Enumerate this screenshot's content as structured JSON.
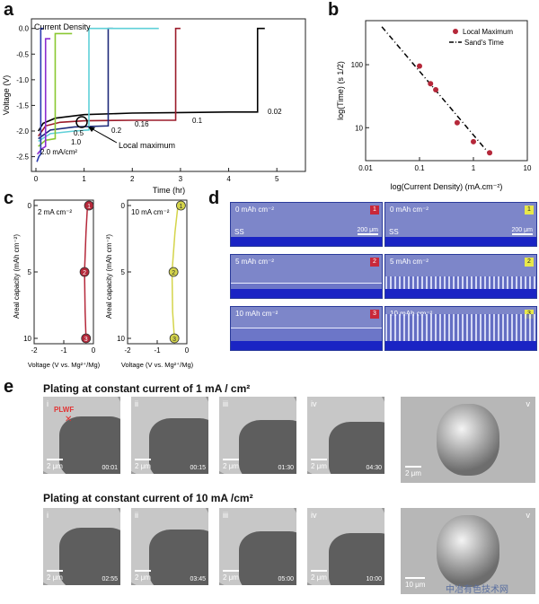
{
  "panels": {
    "a": "a",
    "b": "b",
    "c": "c",
    "d": "d",
    "e": "e"
  },
  "panel_a": {
    "legend_title": "Current Density",
    "xlabel": "Time (hr)",
    "ylabel": "Voltage (V)",
    "annotation": "Local maximum",
    "curve_labels": [
      "0.02",
      "0.1",
      "0.16",
      "0.2",
      "0.5",
      "1.0",
      "2.0 mA/cm²"
    ]
  },
  "panel_b": {
    "xlabel": "log(Current Density) (mA.cm⁻²)",
    "ylabel": "log(Time) (s 1/2)",
    "legend": [
      "Local Maximum",
      "Sand's Time"
    ]
  },
  "panel_c": {
    "left_label": "2 mA cm⁻²",
    "right_label": "10 mA cm⁻²",
    "ylabel": "Areal capacity (mAh cm⁻²)",
    "xlabel": "Voltage (V vs. Mg²⁺/Mg)",
    "markers": [
      "1",
      "2",
      "3"
    ]
  },
  "panel_d": {
    "tiles": [
      {
        "label": "0 mAh cm⁻²",
        "num": "1",
        "ss": "SS",
        "scale": "200 μm"
      },
      {
        "label": "0 mAh cm⁻²",
        "num": "1",
        "ss": "SS",
        "scale": "200 μm"
      },
      {
        "label": "5 mAh cm⁻²",
        "num": "2"
      },
      {
        "label": "5 mAh cm⁻²",
        "num": "2"
      },
      {
        "label": "10 mAh cm⁻²",
        "num": "3"
      },
      {
        "label": "10 mAh cm⁻²",
        "num": "3"
      }
    ]
  },
  "panel_e": {
    "row1_title": "Plating at constant current of 1 mA / cm²",
    "row2_title": "Plating at constant current of 10 mA /cm²",
    "plwf": "PLWF",
    "row1": [
      {
        "roman": "i",
        "scale": "2 μm",
        "time": "00:01"
      },
      {
        "roman": "ii",
        "scale": "2 μm",
        "time": "00:15"
      },
      {
        "roman": "iii",
        "scale": "2 μm",
        "time": "01:30"
      },
      {
        "roman": "iv",
        "scale": "2 μm",
        "time": "04:30"
      },
      {
        "roman": "v",
        "scale": "2 μm"
      }
    ],
    "row2": [
      {
        "roman": "i",
        "scale": "2 μm",
        "time": "02:55"
      },
      {
        "roman": "ii",
        "scale": "2 μm",
        "time": "03:45"
      },
      {
        "roman": "iii",
        "scale": "2 μm",
        "time": "05:00"
      },
      {
        "roman": "iv",
        "scale": "2 μm",
        "time": "10:00"
      },
      {
        "roman": "v",
        "scale": "10 μm"
      }
    ]
  },
  "watermark": "中冶有色技术网",
  "chart_data": [
    {
      "type": "line",
      "title": "",
      "xlabel": "Time (hr)",
      "ylabel": "Voltage (V)",
      "xlim": [
        0,
        5.5
      ],
      "ylim": [
        -2.7,
        0.1
      ],
      "xticks": [
        0,
        1,
        2,
        3,
        4,
        5
      ],
      "yticks": [
        0.0,
        -0.5,
        -1.0,
        -1.5,
        -2.0,
        -2.5
      ],
      "series": [
        {
          "name": "0.02",
          "color": "#000000",
          "x": [
            0.05,
            0.15,
            0.4,
            1.0,
            2.0,
            3.0,
            4.0,
            4.6,
            4.6,
            4.75
          ],
          "y": [
            -2.0,
            -1.85,
            -1.75,
            -1.68,
            -1.65,
            -1.64,
            -1.63,
            -1.63,
            0.0,
            0.0
          ]
        },
        {
          "name": "0.1",
          "color": "#9b1b2a",
          "x": [
            0.05,
            0.2,
            0.5,
            1.0,
            2.0,
            2.9,
            2.9,
            3.0
          ],
          "y": [
            -2.1,
            -1.9,
            -1.83,
            -1.8,
            -1.79,
            -1.79,
            0.0,
            0.0
          ]
        },
        {
          "name": "0.16",
          "color": "#1e2a7a",
          "x": [
            0.05,
            0.3,
            0.8,
            1.5,
            1.5,
            1.6
          ],
          "y": [
            -2.15,
            -1.98,
            -1.92,
            -1.9,
            0.0,
            0.0
          ]
        },
        {
          "name": "0.2",
          "color": "#5fd0d8",
          "x": [
            0.05,
            0.3,
            0.8,
            1.1,
            1.1,
            2.55
          ],
          "y": [
            -2.2,
            -2.05,
            -2.0,
            -1.98,
            0.0,
            0.0
          ]
        },
        {
          "name": "0.5",
          "color": "#8ac832",
          "x": [
            0.05,
            0.2,
            0.4,
            0.4,
            0.75
          ],
          "y": [
            -2.3,
            -2.18,
            -2.15,
            -0.1,
            -0.1
          ]
        },
        {
          "name": "1.0",
          "color": "#8a2bd0",
          "x": [
            0.03,
            0.12,
            0.2,
            0.2,
            0.3
          ],
          "y": [
            -2.45,
            -2.35,
            -2.3,
            -0.2,
            -0.2
          ]
        },
        {
          "name": "2.0 mA/cm²",
          "color": "#2b3bb0",
          "x": [
            0.02,
            0.06,
            0.1,
            0.1,
            0.15
          ],
          "y": [
            -2.6,
            -2.5,
            -2.45,
            0.0,
            0.0
          ]
        }
      ],
      "annotation": "Local maximum"
    },
    {
      "type": "scatter",
      "title": "",
      "xlabel": "log(Current Density) (mA.cm⁻²)",
      "ylabel": "log(Time) (s 1/2)",
      "x_scale": "log",
      "y_scale": "log",
      "xlim": [
        0.01,
        10
      ],
      "ylim": [
        3,
        500
      ],
      "xticks": [
        0.01,
        0.1,
        1,
        10
      ],
      "yticks": [
        10,
        100
      ],
      "series": [
        {
          "name": "Local Maximum",
          "color": "#b5283a",
          "x": [
            0.1,
            0.16,
            0.2,
            0.5,
            1.0,
            2.0
          ],
          "y": [
            95,
            50,
            40,
            12,
            6,
            4
          ]
        },
        {
          "name": "Sand's Time",
          "color": "#000000",
          "style": "dash-dot",
          "x": [
            0.02,
            2.0
          ],
          "y": [
            400,
            3.8
          ]
        }
      ]
    },
    {
      "type": "line",
      "title": "",
      "xlabel": "Voltage (V vs. Mg²⁺/Mg)",
      "ylabel": "Areal capacity (mAh cm⁻²)",
      "xlim": [
        -2,
        0
      ],
      "ylim": [
        10,
        0
      ],
      "xticks": [
        -2,
        -1,
        0
      ],
      "yticks": [
        0,
        5,
        10
      ],
      "series": [
        {
          "name": "2 mA cm⁻²",
          "color": "#b5283a",
          "x": [
            -0.2,
            -0.25,
            -0.3,
            -0.28,
            -0.25
          ],
          "y": [
            0,
            2,
            5,
            8,
            10
          ],
          "markers": [
            [
              -0.15,
              0
            ],
            [
              -0.3,
              5
            ],
            [
              -0.25,
              10
            ]
          ]
        },
        {
          "name": "10 mA cm⁻²",
          "color": "#d4d44a",
          "x": [
            -0.3,
            -0.4,
            -0.5,
            -0.48,
            -0.42
          ],
          "y": [
            0,
            2,
            5,
            8,
            10
          ],
          "markers": [
            [
              -0.2,
              0
            ],
            [
              -0.45,
              5
            ],
            [
              -0.42,
              10
            ]
          ]
        }
      ]
    }
  ]
}
